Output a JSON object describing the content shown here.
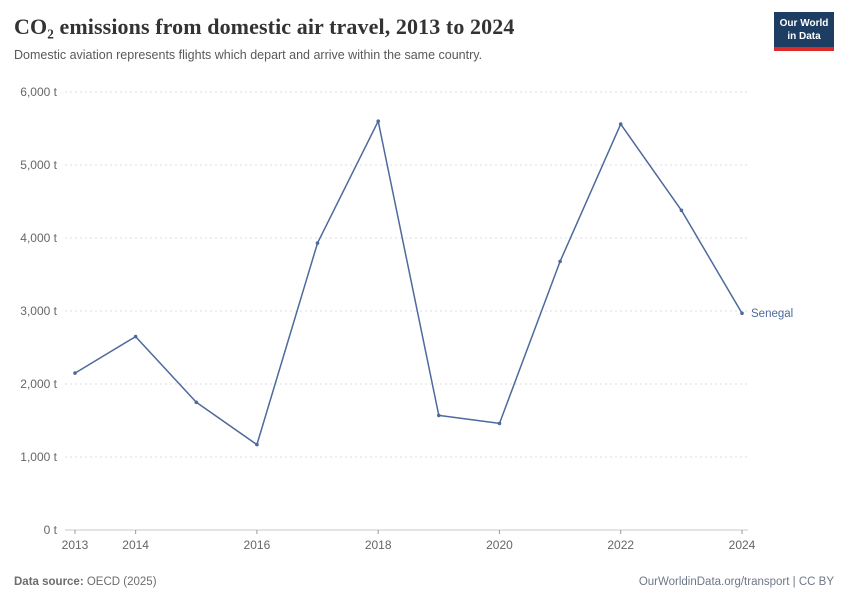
{
  "header": {
    "title": "CO₂ emissions from domestic air travel, 2013 to 2024",
    "subtitle": "Domestic aviation represents flights which depart and arrive within the same country.",
    "logo": {
      "line1": "Our World",
      "line2": "in Data"
    }
  },
  "chart_data": {
    "type": "line",
    "title": "CO₂ emissions from domestic air travel, 2013 to 2024",
    "x": [
      2013,
      2014,
      2015,
      2016,
      2017,
      2018,
      2019,
      2020,
      2021,
      2022,
      2023,
      2024
    ],
    "series": [
      {
        "name": "Senegal",
        "color": "#4c6a9c",
        "values": [
          2150,
          2650,
          1750,
          1170,
          3930,
          5600,
          1570,
          1460,
          3680,
          5560,
          4380,
          2970
        ]
      }
    ],
    "xticks": [
      2013,
      2014,
      2016,
      2018,
      2020,
      2022,
      2024
    ],
    "yticks": [
      0,
      1000,
      2000,
      3000,
      4000,
      5000,
      6000
    ],
    "ytick_suffix": " t",
    "ylim": [
      0,
      6000
    ],
    "grid": "dashed-horizontal",
    "legend": "end-of-line-label"
  },
  "footer": {
    "source_label": "Data source:",
    "source_value": " OECD (2025)",
    "link": "OurWorldinData.org/transport",
    "separator": " | ",
    "license": "CC BY"
  },
  "colors": {
    "line": "#4c6a9c",
    "grid": "#dcdcdc",
    "axis": "#c8c8c8",
    "tick": "#999999",
    "tick_label": "#666666",
    "logo_bg": "#1d3d63",
    "logo_accent": "#dc2a2a"
  }
}
